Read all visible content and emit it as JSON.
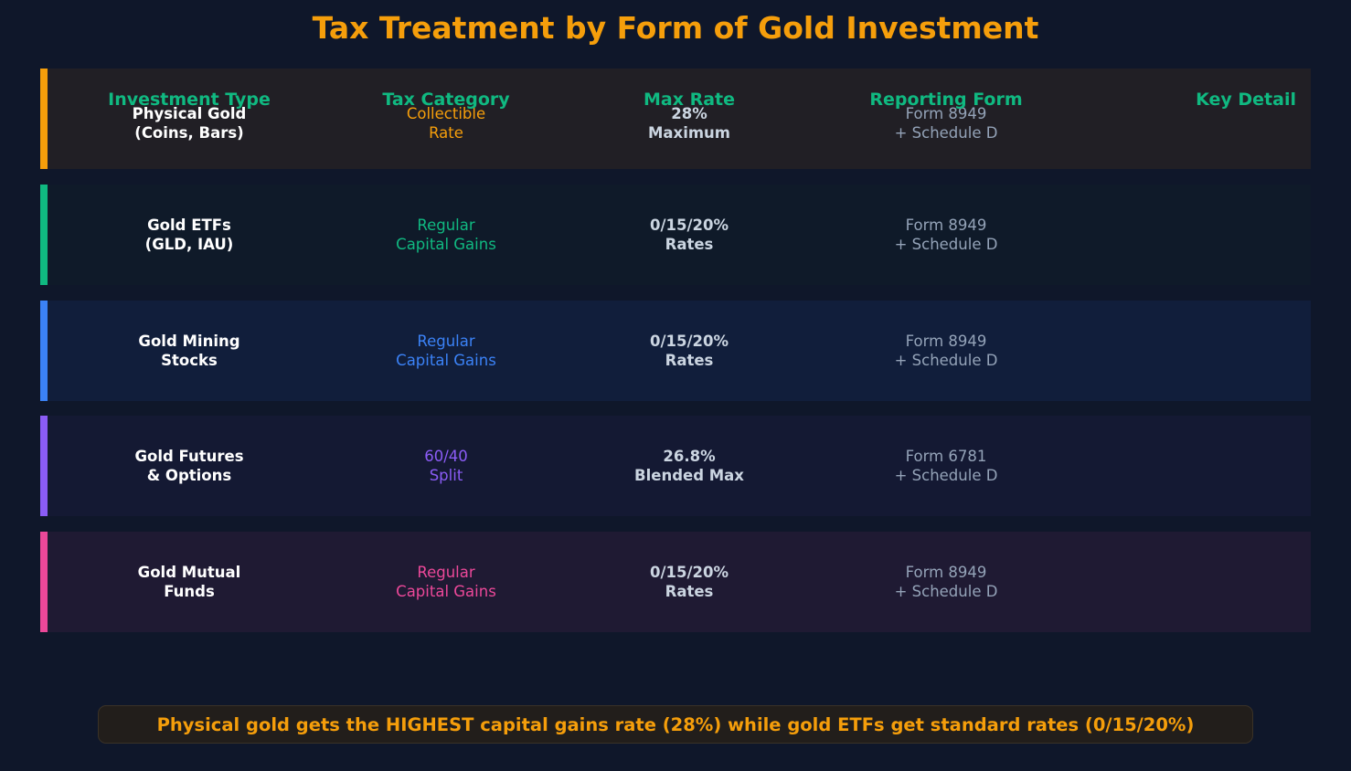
{
  "title": "Tax Treatment by Form of Gold Investment",
  "header": {
    "investment_type": "Investment Type",
    "tax_category": "Tax Category",
    "max_rate": "Max Rate",
    "reporting_form": "Reporting Form",
    "key_detail": "Key Detail"
  },
  "colors": {
    "background": "#0f172a",
    "title": "#f59e0b",
    "header": "#10b981",
    "physical_gold": "#f59e0b",
    "gold_etfs": "#10b981",
    "gold_mining_stocks": "#3b82f6",
    "gold_futures": "#8b5cf6",
    "gold_mutual_funds": "#ec4899"
  },
  "rows": [
    {
      "investment_type": [
        "Physical Gold",
        "(Coins, Bars)"
      ],
      "tax_category": [
        "Collectible",
        "Rate"
      ],
      "max_rate": [
        "28%",
        "Maximum"
      ],
      "reporting_form": [
        "Form 8949",
        "+ Schedule D"
      ],
      "key_detail": "",
      "accent": "#f59e0b",
      "background": "#211f25"
    },
    {
      "investment_type": [
        "Gold ETFs",
        "(GLD, IAU)"
      ],
      "tax_category": [
        "Regular",
        "Capital Gains"
      ],
      "max_rate": [
        "0/15/20%",
        "Rates"
      ],
      "reporting_form": [
        "Form 8949",
        "+ Schedule D"
      ],
      "key_detail": "",
      "accent": "#10b981",
      "background": "#0f1a29"
    },
    {
      "investment_type": [
        "Gold Mining",
        "Stocks"
      ],
      "tax_category": [
        "Regular",
        "Capital Gains"
      ],
      "max_rate": [
        "0/15/20%",
        "Rates"
      ],
      "reporting_form": [
        "Form 8949",
        "+ Schedule D"
      ],
      "key_detail": "",
      "accent": "#3b82f6",
      "background": "#111e3b"
    },
    {
      "investment_type": [
        "Gold Futures",
        "& Options"
      ],
      "tax_category": [
        "60/40",
        "Split"
      ],
      "max_rate": [
        "26.8%",
        "Blended Max"
      ],
      "reporting_form": [
        "Form 6781",
        "+ Schedule D"
      ],
      "key_detail": "",
      "accent": "#8b5cf6",
      "background": "#141933"
    },
    {
      "investment_type": [
        "Gold Mutual",
        "Funds"
      ],
      "tax_category": [
        "Regular",
        "Capital Gains"
      ],
      "max_rate": [
        "0/15/20%",
        "Rates"
      ],
      "reporting_form": [
        "Form 8949",
        "+ Schedule D"
      ],
      "key_detail": "",
      "accent": "#ec4899",
      "background": "#1f1a33"
    }
  ],
  "callout": "Physical gold gets the HIGHEST capital gains rate (28%) while gold ETFs get standard rates (0/15/20%)",
  "chart_data": {
    "type": "table",
    "title": "Tax Treatment by Form of Gold Investment",
    "columns": [
      "Investment Type",
      "Tax Category",
      "Max Rate",
      "Reporting Form",
      "Key Detail"
    ],
    "rows": [
      [
        "Physical Gold (Coins, Bars)",
        "Collectible Rate",
        "28% Maximum",
        "Form 8949 + Schedule D",
        ""
      ],
      [
        "Gold ETFs (GLD, IAU)",
        "Regular Capital Gains",
        "0/15/20% Rates",
        "Form 8949 + Schedule D",
        ""
      ],
      [
        "Gold Mining Stocks",
        "Regular Capital Gains",
        "0/15/20% Rates",
        "Form 8949 + Schedule D",
        ""
      ],
      [
        "Gold Futures & Options",
        "60/40 Split",
        "26.8% Blended Max",
        "Form 6781 + Schedule D",
        ""
      ],
      [
        "Gold Mutual Funds",
        "Regular Capital Gains",
        "0/15/20% Rates",
        "Form 8949 + Schedule D",
        ""
      ]
    ]
  }
}
